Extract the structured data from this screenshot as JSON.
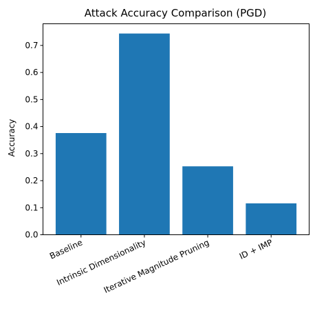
{
  "chart_data": {
    "type": "bar",
    "title": "Attack Accuracy Comparison (PGD)",
    "xlabel": "",
    "ylabel": "Accuracy",
    "categories": [
      "Baseline",
      "Intrinsic Dimensionality",
      "Iterative Magnitude Pruning",
      "ID + IMP"
    ],
    "values": [
      0.376,
      0.744,
      0.253,
      0.116
    ],
    "ylim": [
      0,
      0.78
    ],
    "yticks": [
      0.0,
      0.1,
      0.2,
      0.3,
      0.4,
      0.5,
      0.6,
      0.7
    ],
    "ytick_labels": [
      "0.0",
      "0.1",
      "0.2",
      "0.3",
      "0.4",
      "0.5",
      "0.6",
      "0.7"
    ],
    "bar_color": "#1f77b4",
    "grid": false,
    "legend": "none"
  }
}
